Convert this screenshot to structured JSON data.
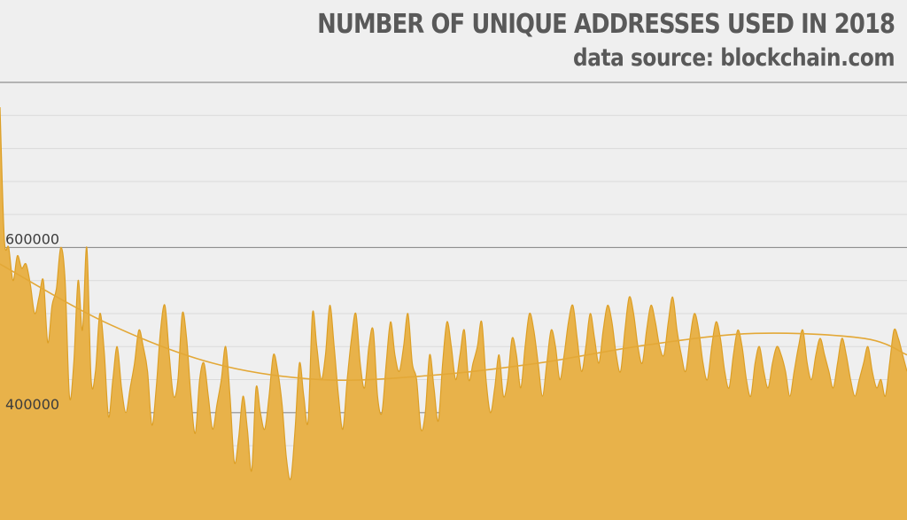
{
  "colors": {
    "background": "#efefef",
    "area_fill": "#e8b24a",
    "area_line": "#dc9f26",
    "trend_line": "#e3a837",
    "grid_minor": "#dadada",
    "grid_major": "#8f8f8f",
    "text": "#595959"
  },
  "chart_data": {
    "type": "area",
    "title": "NUMBER OF UNIQUE ADDRESSES USED IN 2018",
    "subtitle": "data source: blockchain.com",
    "xlabel": "",
    "ylabel": "",
    "ylim": [
      270000,
      800000
    ],
    "yticks": [
      {
        "value": 400000,
        "label": "400000"
      },
      {
        "value": 600000,
        "label": "600000"
      }
    ],
    "major_gridlines": [
      400000,
      600000,
      800000
    ],
    "minor_gridline_step": 40000,
    "grid": true,
    "legend": "none",
    "x": "day of year 2018 (1 to 210), no tick labels shown",
    "series": [
      {
        "values": [
          770000,
          610000,
          600000,
          560000,
          590000,
          575000,
          580000,
          555000,
          520000,
          540000,
          560000,
          485000,
          530000,
          550000,
          600000,
          560000,
          420000,
          460000,
          560000,
          500000,
          600000,
          440000,
          450000,
          520000,
          475000,
          395000,
          440000,
          480000,
          430000,
          400000,
          430000,
          460000,
          500000,
          480000,
          450000,
          385000,
          430000,
          500000,
          530000,
          470000,
          420000,
          440000,
          520000,
          490000,
          420000,
          375000,
          440000,
          460000,
          420000,
          380000,
          410000,
          440000,
          480000,
          420000,
          340000,
          370000,
          420000,
          380000,
          330000,
          430000,
          400000,
          380000,
          420000,
          470000,
          450000,
          410000,
          345000,
          320000,
          380000,
          460000,
          420000,
          390000,
          520000,
          480000,
          440000,
          470000,
          530000,
          480000,
          420000,
          380000,
          440000,
          490000,
          520000,
          460000,
          430000,
          480000,
          500000,
          420000,
          400000,
          460000,
          510000,
          470000,
          450000,
          480000,
          520000,
          460000,
          440000,
          380000,
          400000,
          470000,
          430000,
          390000,
          460000,
          510000,
          480000,
          440000,
          470000,
          500000,
          440000,
          460000,
          480000,
          510000,
          440000,
          400000,
          430000,
          470000,
          420000,
          440000,
          490000,
          470000,
          430000,
          480000,
          520000,
          500000,
          460000,
          420000,
          460000,
          500000,
          480000,
          440000,
          470000,
          510000,
          530000,
          490000,
          450000,
          480000,
          520000,
          490000,
          460000,
          500000,
          530000,
          510000,
          470000,
          450000,
          500000,
          540000,
          520000,
          480000,
          460000,
          500000,
          530000,
          510000,
          480000,
          470000,
          510000,
          540000,
          500000,
          470000,
          450000,
          490000,
          520000,
          500000,
          460000,
          440000,
          480000,
          510000,
          490000,
          450000,
          430000,
          470000,
          500000,
          480000,
          440000,
          420000,
          460000,
          480000,
          450000,
          430000,
          460000,
          480000,
          470000,
          450000,
          420000,
          450000,
          480000,
          500000,
          460000,
          440000,
          470000,
          490000,
          470000,
          450000,
          430000,
          460000,
          490000,
          470000,
          440000,
          420000,
          440000,
          460000,
          480000,
          450000,
          430000,
          440000,
          420000,
          460000,
          500000,
          490000,
          470000,
          450000
        ]
      },
      {
        "name": "trend",
        "values_at_day": [
          [
            1,
            580000
          ],
          [
            25,
            510000
          ],
          [
            50,
            460000
          ],
          [
            75,
            440000
          ],
          [
            100,
            445000
          ],
          [
            125,
            460000
          ],
          [
            150,
            482000
          ],
          [
            175,
            496000
          ],
          [
            200,
            490000
          ],
          [
            210,
            470000
          ]
        ]
      }
    ]
  }
}
